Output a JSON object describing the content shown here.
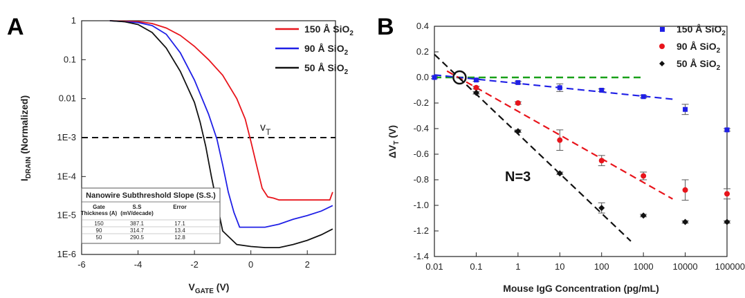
{
  "panels": {
    "a_label": "A",
    "b_label": "B"
  },
  "colors": {
    "red": "#e8141b",
    "blue": "#1f1fe6",
    "black": "#111111",
    "green": "#18a018",
    "darkred": "#8b1010"
  },
  "chart_data": [
    {
      "type": "line",
      "panel": "A",
      "xlabel_main": "V",
      "xlabel_sub": "GATE",
      "xlabel_unit": " (V)",
      "ylabel_main": "I",
      "ylabel_sub": "DRAIN",
      "ylabel_unit": " (Normalized)",
      "xlim": [
        -6,
        3
      ],
      "ylim": [
        1e-06,
        1
      ],
      "yscale": "log",
      "xticks": [
        -6,
        -4,
        -2,
        0,
        2
      ],
      "yticks": [
        {
          "v": 1,
          "label": "1"
        },
        {
          "v": 0.1,
          "label": "0.1"
        },
        {
          "v": 0.01,
          "label": "0.01"
        },
        {
          "v": 0.001,
          "label": "1E-3"
        },
        {
          "v": 0.0001,
          "label": "1E-4"
        },
        {
          "v": 1e-05,
          "label": "1E-5"
        },
        {
          "v": 1e-06,
          "label": "1E-6"
        }
      ],
      "threshold": {
        "y": 0.001,
        "label_main": "v",
        "label_sub": "T"
      },
      "legend_position": "top-right",
      "series": [
        {
          "name_main": "150 Å SiO",
          "name_sub": "2",
          "color": "#e8141b",
          "x": [
            -5,
            -4,
            -3.5,
            -3,
            -2.5,
            -2,
            -1.5,
            -1,
            -0.5,
            -0.2,
            0,
            0.2,
            0.4,
            0.6,
            0.8,
            1,
            1.5,
            2,
            2.5,
            2.8,
            2.9
          ],
          "y": [
            1,
            0.95,
            0.85,
            0.65,
            0.42,
            0.22,
            0.1,
            0.04,
            0.01,
            0.003,
            0.0008,
            0.0002,
            5e-05,
            3e-05,
            2.8e-05,
            2.5e-05,
            2.5e-05,
            2.5e-05,
            2.5e-05,
            2.5e-05,
            4e-05
          ]
        },
        {
          "name_main": "90 Å SiO",
          "name_sub": "2",
          "color": "#1f1fe6",
          "x": [
            -5,
            -4,
            -3.5,
            -3,
            -2.5,
            -2,
            -1.5,
            -1.2,
            -1,
            -0.8,
            -0.6,
            -0.4,
            -0.2,
            0,
            0.5,
            1,
            1.5,
            2,
            2.5,
            2.9
          ],
          "y": [
            1,
            0.9,
            0.75,
            0.45,
            0.15,
            0.03,
            0.004,
            0.0009,
            0.0002,
            4e-05,
            1.2e-05,
            5e-06,
            5e-06,
            5e-06,
            5e-06,
            6e-06,
            8e-06,
            1e-05,
            1.3e-05,
            1.8e-05
          ]
        },
        {
          "name_main": "50 Å SiO",
          "name_sub": "2",
          "color": "#111111",
          "x": [
            -5,
            -4.5,
            -4,
            -3.5,
            -3,
            -2.5,
            -2,
            -1.8,
            -1.6,
            -1.4,
            -1.2,
            -1,
            -0.5,
            0,
            0.5,
            1,
            1.5,
            2,
            2.5,
            2.9
          ],
          "y": [
            1,
            0.95,
            0.8,
            0.5,
            0.2,
            0.05,
            0.008,
            0.0025,
            0.0006,
            0.0001,
            2e-05,
            4e-06,
            1.8e-06,
            1.6e-06,
            1.5e-06,
            1.5e-06,
            1.8e-06,
            2.3e-06,
            3.2e-06,
            4.5e-06
          ]
        }
      ]
    },
    {
      "type": "scatter",
      "panel": "B",
      "xlabel": "Mouse IgG Concentration (pg/mL)",
      "ylabel_main": "ΔV",
      "ylabel_sub": "T",
      "ylabel_unit": " (V)",
      "xscale": "log",
      "xlim": [
        0.01,
        100000
      ],
      "ylim": [
        -1.4,
        0.4
      ],
      "xticks": [
        {
          "v": 0.01,
          "label": "0.01"
        },
        {
          "v": 0.1,
          "label": "0.1"
        },
        {
          "v": 1,
          "label": "1"
        },
        {
          "v": 10,
          "label": "10"
        },
        {
          "v": 100,
          "label": "100"
        },
        {
          "v": 1000,
          "label": "1000"
        },
        {
          "v": 10000,
          "label": "10000"
        },
        {
          "v": 100000,
          "label": "100000"
        }
      ],
      "yticks": [
        {
          "v": 0.4,
          "label": "0.4"
        },
        {
          "v": 0.2,
          "label": "0.2"
        },
        {
          "v": 0,
          "label": "0.0"
        },
        {
          "v": -0.2,
          "label": "-0.2"
        },
        {
          "v": -0.4,
          "label": "-0.4"
        },
        {
          "v": -0.6,
          "label": "-0.6"
        },
        {
          "v": -0.8,
          "label": "-0.8"
        },
        {
          "v": -1.0,
          "label": "-1.0"
        },
        {
          "v": -1.2,
          "label": "-1.2"
        },
        {
          "v": -1.4,
          "label": "-1.4"
        }
      ],
      "annotation": "N=3",
      "legend_position": "top-right",
      "series": [
        {
          "name_main": "150 Å SiO",
          "name_sub": "2",
          "color": "#1f1fe6",
          "marker": "square",
          "x": [
            0.01,
            0.1,
            1,
            10,
            100,
            1000,
            10000,
            100000
          ],
          "y": [
            0,
            -0.02,
            -0.04,
            -0.08,
            -0.1,
            -0.15,
            -0.25,
            -0.41
          ],
          "err": [
            0.01,
            0.01,
            0.01,
            0.03,
            0.01,
            0.01,
            0.04,
            0.01
          ],
          "fit": {
            "x": [
              0.01,
              5000
            ],
            "y": [
              0.02,
              -0.17
            ]
          }
        },
        {
          "name_main": "90 Å SiO",
          "name_sub": "2",
          "color": "#e8141b",
          "marker": "circle",
          "x": [
            0.1,
            1,
            10,
            100,
            1000,
            10000,
            100000
          ],
          "y": [
            -0.08,
            -0.2,
            -0.49,
            -0.65,
            -0.77,
            -0.88,
            -0.91
          ],
          "err": [
            0.01,
            0.01,
            0.08,
            0.04,
            0.03,
            0.08,
            0.04
          ],
          "fit": {
            "x": [
              0.02,
              5000
            ],
            "y": [
              0.05,
              -0.95
            ]
          }
        },
        {
          "name_main": "50 Å SiO",
          "name_sub": "2",
          "color": "#111111",
          "marker": "diamond",
          "x": [
            0.1,
            1,
            10,
            100,
            1000,
            10000,
            100000
          ],
          "y": [
            -0.12,
            -0.42,
            -0.75,
            -1.02,
            -1.08,
            -1.13,
            -1.13
          ],
          "err": [
            0.01,
            0.01,
            0.01,
            0.04,
            0.01,
            0.01,
            0.01
          ],
          "fit": {
            "x": [
              0.01,
              500
            ],
            "y": [
              0.18,
              -1.28
            ]
          }
        }
      ],
      "reference_line": {
        "y": 0,
        "x": [
          0.01,
          1000
        ],
        "color": "#18a018"
      },
      "intersection": {
        "x": 0.04,
        "y": 0
      }
    }
  ],
  "inset_table": {
    "title": "Nanowire Subthreshold Slope (S.S.)",
    "headers": [
      "Gate Thickness (A)",
      "S.S (mV/decade)",
      "Error"
    ],
    "rows": [
      [
        "150",
        "387.1",
        "17.1"
      ],
      [
        "90",
        "314.7",
        "13.4"
      ],
      [
        "50",
        "290.5",
        "12.8"
      ]
    ]
  }
}
